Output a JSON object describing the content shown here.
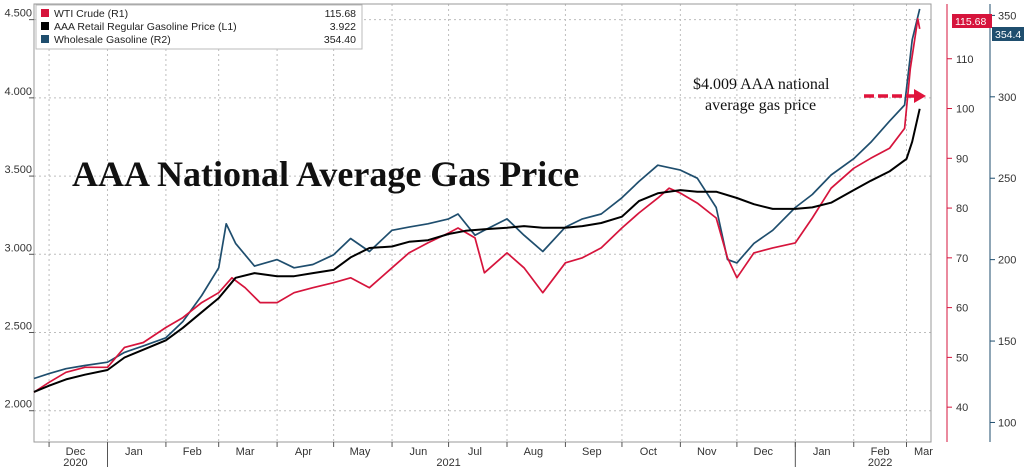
{
  "chart_data": {
    "type": "line",
    "title": "AAA National Average Gas Price",
    "annotation": {
      "line1": "$4.009 AAA national",
      "line2": "average gas price"
    },
    "x_range": [
      "2020-11-23",
      "2022-03-14"
    ],
    "x_month_labels": [
      {
        "date": "2020-12-15",
        "label": "Dec"
      },
      {
        "date": "2021-01-15",
        "label": "Jan"
      },
      {
        "date": "2021-02-15",
        "label": "Feb"
      },
      {
        "date": "2021-03-15",
        "label": "Mar"
      },
      {
        "date": "2021-04-15",
        "label": "Apr"
      },
      {
        "date": "2021-05-15",
        "label": "May"
      },
      {
        "date": "2021-06-15",
        "label": "Jun"
      },
      {
        "date": "2021-07-15",
        "label": "Jul"
      },
      {
        "date": "2021-08-15",
        "label": "Aug"
      },
      {
        "date": "2021-09-15",
        "label": "Sep"
      },
      {
        "date": "2021-10-15",
        "label": "Oct"
      },
      {
        "date": "2021-11-15",
        "label": "Nov"
      },
      {
        "date": "2021-12-15",
        "label": "Dec"
      },
      {
        "date": "2022-01-15",
        "label": "Jan"
      },
      {
        "date": "2022-02-15",
        "label": "Feb"
      },
      {
        "date": "2022-03-10",
        "label": "Mar"
      }
    ],
    "x_year_labels": [
      {
        "date": "2020-12-15",
        "label": "2020"
      },
      {
        "date": "2021-07-01",
        "label": "2021"
      },
      {
        "date": "2022-02-15",
        "label": "2022"
      }
    ],
    "y_left": {
      "range": [
        1.8,
        4.6
      ],
      "ticks": [
        "2.000",
        "2.500",
        "3.000",
        "3.500",
        "4.000",
        "4.500"
      ]
    },
    "y_r1": {
      "range": [
        33,
        121
      ],
      "ticks": [
        "40",
        "50",
        "60",
        "70",
        "80",
        "90",
        "100",
        "110"
      ]
    },
    "y_r2": {
      "range": [
        88,
        357
      ],
      "ticks": [
        "100",
        "150",
        "200",
        "250",
        "300",
        "350"
      ]
    },
    "legend": [
      {
        "name": "WTI Crude (R1)",
        "value": "115.68",
        "color": "#d6143c"
      },
      {
        "name": "AAA Retail Regular Gasoline Price (L1)",
        "value": "3.922",
        "color": "#000000"
      },
      {
        "name": "Wholesale Gasoline (R2)",
        "value": "354.40",
        "color": "#1f4e6e"
      }
    ],
    "badges": [
      {
        "series": "WTI Crude (R1)",
        "label": "115.68",
        "color": "#d6143c"
      },
      {
        "series": "Wholesale Gasoline (R2)",
        "label": "354.4",
        "color": "#1f4e6e"
      }
    ],
    "series": [
      {
        "name": "WTI Crude (R1)",
        "axis": "r1",
        "color": "#d6143c",
        "x": [
          "2020-11-23",
          "2020-12-01",
          "2020-12-10",
          "2020-12-20",
          "2021-01-01",
          "2021-01-10",
          "2021-01-20",
          "2021-02-01",
          "2021-02-10",
          "2021-02-20",
          "2021-03-01",
          "2021-03-08",
          "2021-03-15",
          "2021-03-23",
          "2021-04-01",
          "2021-04-10",
          "2021-04-20",
          "2021-05-01",
          "2021-05-10",
          "2021-05-20",
          "2021-06-01",
          "2021-06-10",
          "2021-06-20",
          "2021-07-01",
          "2021-07-06",
          "2021-07-15",
          "2021-07-20",
          "2021-08-01",
          "2021-08-10",
          "2021-08-20",
          "2021-09-01",
          "2021-09-10",
          "2021-09-20",
          "2021-10-01",
          "2021-10-10",
          "2021-10-20",
          "2021-10-26",
          "2021-11-01",
          "2021-11-10",
          "2021-11-20",
          "2021-11-26",
          "2021-12-01",
          "2021-12-10",
          "2021-12-20",
          "2022-01-01",
          "2022-01-10",
          "2022-01-20",
          "2022-02-01",
          "2022-02-10",
          "2022-02-20",
          "2022-02-28",
          "2022-03-03",
          "2022-03-07",
          "2022-03-08"
        ],
        "values": [
          43,
          45,
          47,
          48,
          48,
          52,
          53,
          56,
          58,
          61,
          63,
          66,
          64,
          61,
          61,
          63,
          64,
          65,
          66,
          64,
          68,
          71,
          73,
          75,
          76,
          74,
          67,
          71,
          68,
          63,
          69,
          70,
          72,
          76,
          79,
          82,
          84,
          83,
          81,
          78,
          70,
          66,
          71,
          72,
          73,
          78,
          84,
          88,
          90,
          92,
          96,
          108,
          118,
          116
        ]
      },
      {
        "name": "AAA Retail Regular Gasoline Price (L1)",
        "axis": "left",
        "color": "#000000",
        "x": [
          "2020-11-23",
          "2020-12-01",
          "2020-12-10",
          "2020-12-20",
          "2021-01-01",
          "2021-01-10",
          "2021-01-20",
          "2021-02-01",
          "2021-02-10",
          "2021-02-20",
          "2021-03-01",
          "2021-03-10",
          "2021-03-20",
          "2021-04-01",
          "2021-04-10",
          "2021-04-20",
          "2021-05-01",
          "2021-05-10",
          "2021-05-20",
          "2021-06-01",
          "2021-06-10",
          "2021-06-20",
          "2021-07-01",
          "2021-07-10",
          "2021-07-20",
          "2021-08-01",
          "2021-08-10",
          "2021-08-20",
          "2021-09-01",
          "2021-09-10",
          "2021-09-20",
          "2021-10-01",
          "2021-10-10",
          "2021-10-20",
          "2021-11-01",
          "2021-11-10",
          "2021-11-20",
          "2021-12-01",
          "2021-12-10",
          "2021-12-20",
          "2022-01-01",
          "2022-01-10",
          "2022-01-20",
          "2022-02-01",
          "2022-02-10",
          "2022-02-20",
          "2022-03-01",
          "2022-03-04",
          "2022-03-08"
        ],
        "values": [
          2.12,
          2.16,
          2.2,
          2.23,
          2.26,
          2.34,
          2.39,
          2.45,
          2.53,
          2.63,
          2.72,
          2.85,
          2.88,
          2.86,
          2.86,
          2.88,
          2.9,
          2.98,
          3.04,
          3.05,
          3.08,
          3.09,
          3.13,
          3.15,
          3.16,
          3.17,
          3.18,
          3.17,
          3.17,
          3.18,
          3.2,
          3.24,
          3.34,
          3.39,
          3.41,
          3.4,
          3.4,
          3.36,
          3.32,
          3.29,
          3.29,
          3.3,
          3.33,
          3.41,
          3.47,
          3.53,
          3.61,
          3.72,
          3.93
        ]
      },
      {
        "name": "Wholesale Gasoline (R2)",
        "axis": "r2",
        "color": "#1f4e6e",
        "x": [
          "2020-11-23",
          "2020-12-01",
          "2020-12-10",
          "2020-12-20",
          "2021-01-01",
          "2021-01-10",
          "2021-01-20",
          "2021-02-01",
          "2021-02-10",
          "2021-02-20",
          "2021-03-01",
          "2021-03-05",
          "2021-03-10",
          "2021-03-20",
          "2021-04-01",
          "2021-04-10",
          "2021-04-20",
          "2021-05-01",
          "2021-05-10",
          "2021-05-20",
          "2021-06-01",
          "2021-06-10",
          "2021-06-20",
          "2021-07-01",
          "2021-07-06",
          "2021-07-15",
          "2021-07-20",
          "2021-08-01",
          "2021-08-10",
          "2021-08-20",
          "2021-09-01",
          "2021-09-10",
          "2021-09-20",
          "2021-10-01",
          "2021-10-10",
          "2021-10-20",
          "2021-11-01",
          "2021-11-10",
          "2021-11-20",
          "2021-11-26",
          "2021-12-01",
          "2021-12-10",
          "2021-12-20",
          "2022-01-01",
          "2022-01-10",
          "2022-01-20",
          "2022-02-01",
          "2022-02-10",
          "2022-02-20",
          "2022-02-28",
          "2022-03-04",
          "2022-03-08"
        ],
        "values": [
          127,
          130,
          133,
          135,
          137,
          143,
          147,
          152,
          162,
          178,
          195,
          222,
          210,
          196,
          200,
          195,
          197,
          203,
          213,
          205,
          218,
          220,
          222,
          225,
          228,
          215,
          218,
          225,
          215,
          205,
          220,
          225,
          228,
          238,
          248,
          258,
          255,
          250,
          232,
          200,
          198,
          210,
          218,
          232,
          240,
          252,
          262,
          272,
          285,
          295,
          335,
          354
        ]
      }
    ]
  }
}
